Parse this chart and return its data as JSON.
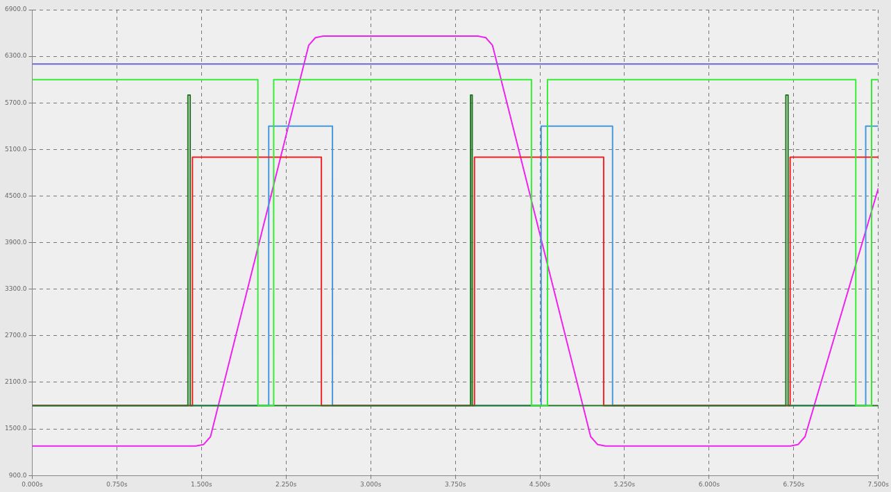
{
  "chart_data": {
    "type": "step",
    "xlim": [
      0,
      7.5
    ],
    "ylim": [
      900,
      6900
    ],
    "xticks": [
      {
        "value": 0,
        "label": "0.000s"
      },
      {
        "value": 0.75,
        "label": "0.750s"
      },
      {
        "value": 1.5,
        "label": "1.500s"
      },
      {
        "value": 2.25,
        "label": "2.250s"
      },
      {
        "value": 3,
        "label": "3.000s"
      },
      {
        "value": 3.75,
        "label": "3.750s"
      },
      {
        "value": 4.5,
        "label": "4.500s"
      },
      {
        "value": 5.25,
        "label": "5.250s"
      },
      {
        "value": 6,
        "label": "6.000s"
      },
      {
        "value": 6.75,
        "label": "6.750s"
      },
      {
        "value": 7.5,
        "label": "7.500s"
      }
    ],
    "yticks": [
      {
        "value": 900,
        "label": "900.0"
      },
      {
        "value": 1500,
        "label": "1500.0"
      },
      {
        "value": 2100,
        "label": "2100.0"
      },
      {
        "value": 2700,
        "label": "2700.0"
      },
      {
        "value": 3300,
        "label": "3300.0"
      },
      {
        "value": 3900,
        "label": "3900.0"
      },
      {
        "value": 4500,
        "label": "4500.0"
      },
      {
        "value": 5100,
        "label": "5100.0"
      },
      {
        "value": 5700,
        "label": "5700.0"
      },
      {
        "value": 6300,
        "label": "6300.0"
      },
      {
        "value": 6900,
        "label": "6900.0"
      }
    ],
    "grid": true,
    "legend": false,
    "line_style": "solid",
    "marker": "none",
    "series": [
      {
        "type": "line",
        "color": "#6a6ad0",
        "x": [
          0,
          7.5
        ],
        "values": [
          6200,
          6200
        ]
      },
      {
        "color": "#33ee33",
        "x": [
          0,
          2.0,
          2.14,
          4.425,
          4.567,
          7.3,
          7.44,
          7.5
        ],
        "values": [
          6000,
          1800,
          6000,
          1800,
          6000,
          1800,
          6000,
          6000
        ]
      },
      {
        "color": "#227722",
        "x": [
          0,
          1.38,
          1.4,
          3.885,
          3.9,
          6.68,
          6.7,
          7.5
        ],
        "values": [
          1800,
          5800,
          1800,
          5800,
          1800,
          5800,
          1800,
          1800
        ]
      },
      {
        "color": "#ee2222",
        "x": [
          0,
          1.42,
          2.563,
          3.92,
          5.065,
          6.718,
          7.5
        ],
        "values": [
          1800,
          5000,
          1800,
          5000,
          1800,
          5000,
          5000
        ]
      },
      {
        "color": "#4499dd",
        "x": [
          0,
          2.096,
          2.661,
          4.511,
          5.144,
          7.388,
          7.5
        ],
        "values": [
          1800,
          5400,
          1800,
          5400,
          1800,
          5400,
          5400
        ]
      },
      {
        "type": "line",
        "color": "#ee22ee",
        "x": [
          0,
          1.45,
          1.52,
          1.58,
          2.45,
          2.51,
          2.58,
          3.95,
          4.02,
          4.08,
          4.95,
          5.01,
          5.08,
          6.72,
          6.79,
          6.85,
          7.5
        ],
        "values": [
          1280,
          1280,
          1300,
          1400,
          6440,
          6540,
          6560,
          6560,
          6540,
          6440,
          1400,
          1300,
          1280,
          1280,
          1300,
          1400,
          4600
        ]
      }
    ]
  }
}
